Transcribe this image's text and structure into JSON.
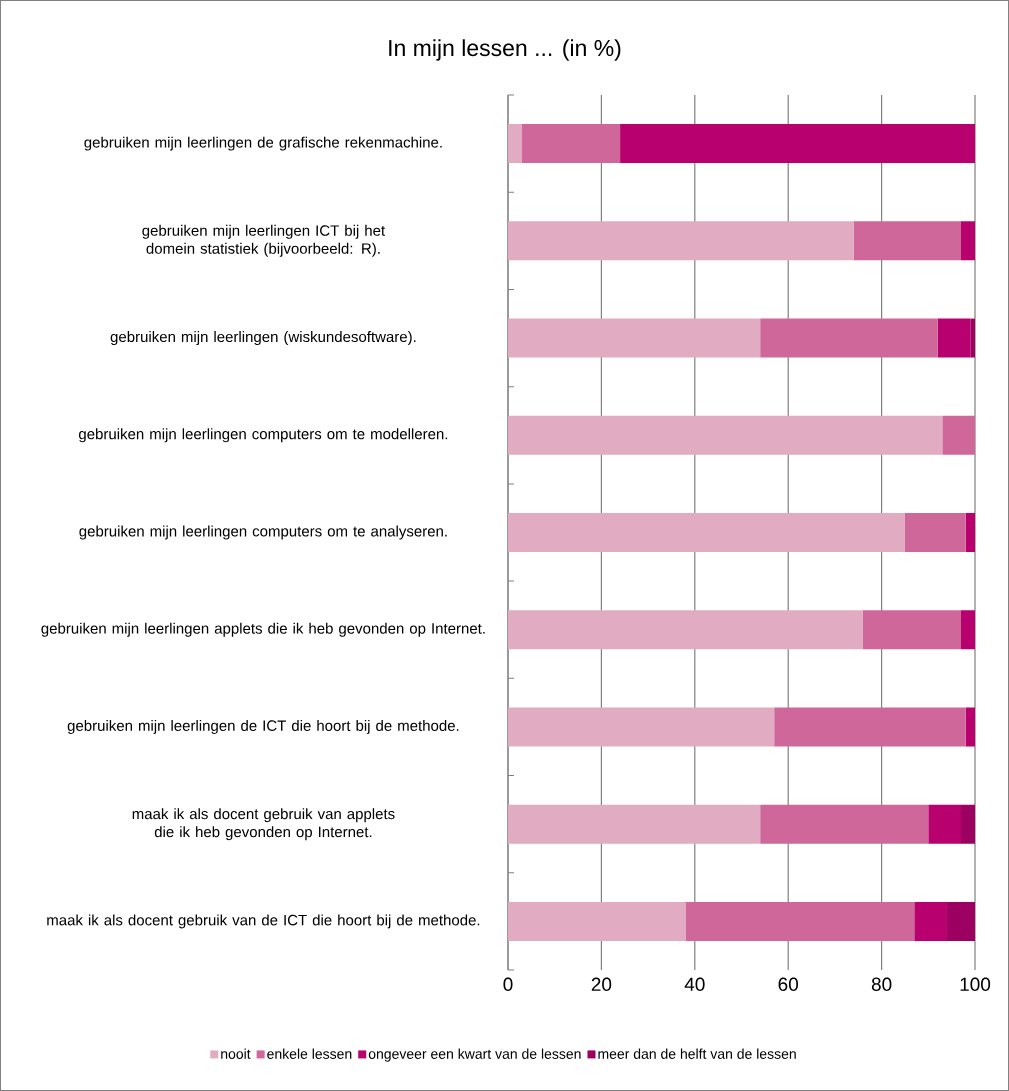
{
  "chart_data": {
    "type": "bar",
    "orientation": "horizontal",
    "stacked": true,
    "title": "In mijn lessen ... (in %)",
    "categories": [
      "gebruiken mijn leerlingen de grafische rekenmachine.",
      "gebruiken mijn leerlingen ICT bij het domein statistiek (bijvoorbeeld: R).",
      "gebruiken mijn leerlingen (wiskundesoftware).",
      "gebruiken mijn leerlingen computers om te modelleren.",
      "gebruiken mijn leerlingen computers om te analyseren.",
      "gebruiken mijn leerlingen applets die ik heb gevonden op Internet.",
      "gebruiken mijn leerlingen de ICT die hoort bij de methode.",
      "maak ik als docent gebruik van applets die ik heb gevonden op Internet.",
      "maak ik als docent gebruik van de ICT die hoort bij de methode."
    ],
    "series": [
      {
        "name": "nooit",
        "color": "#e1acc2",
        "values": [
          3,
          74,
          54,
          93,
          85,
          76,
          57,
          54,
          38
        ]
      },
      {
        "name": "enkele lessen",
        "color": "#d0679a",
        "values": [
          21,
          23,
          38,
          7,
          13,
          21,
          41,
          36,
          49
        ]
      },
      {
        "name": "ongeveer een kwart van de lessen",
        "color": "#b8006f",
        "values": [
          76,
          3,
          7,
          0,
          2,
          3,
          2,
          7,
          7
        ]
      },
      {
        "name": "meer dan de helft van de lessen",
        "color": "#9c0060",
        "values": [
          0,
          0,
          1,
          0,
          0,
          0,
          0,
          3,
          6
        ]
      }
    ],
    "xlim": [
      0,
      100
    ],
    "xticks": [
      0,
      20,
      40,
      60,
      80,
      100
    ],
    "grid": "x",
    "legend": "bottom"
  }
}
